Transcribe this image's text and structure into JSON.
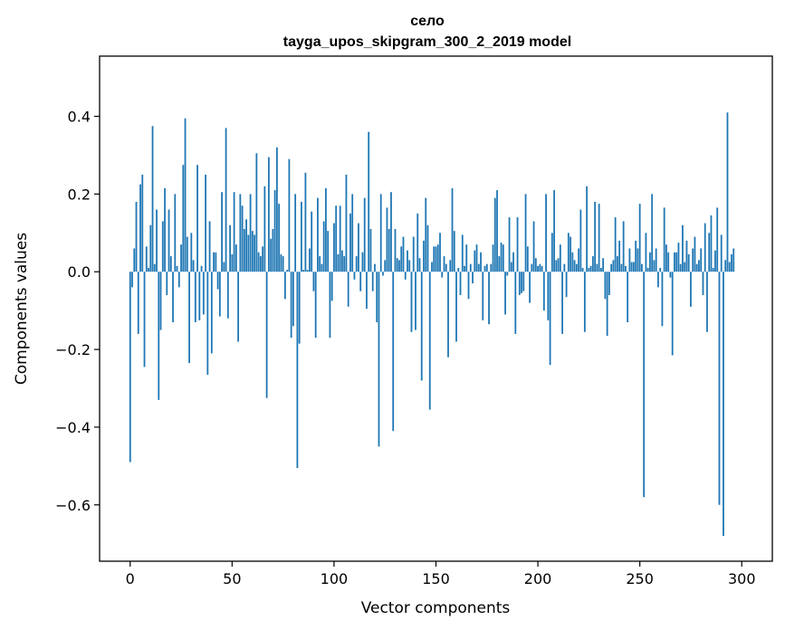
{
  "chart_data": {
    "type": "bar",
    "title": "село",
    "subtitle": "tayga_upos_skipgram_300_2_2019 model",
    "xlabel": "Vector components",
    "ylabel": "Components values",
    "xlim": [
      -15,
      315
    ],
    "ylim": [
      -0.745,
      0.555
    ],
    "xticks": [
      0,
      50,
      100,
      150,
      200,
      250,
      300
    ],
    "xtick_labels": [
      "0",
      "50",
      "100",
      "150",
      "200",
      "250",
      "300"
    ],
    "yticks": [
      -0.6,
      -0.4,
      -0.2,
      0.0,
      0.2,
      0.4
    ],
    "ytick_labels": [
      "−0.6",
      "−0.4",
      "−0.2",
      "0.0",
      "0.2",
      "0.4"
    ],
    "bar_color": "#1f77b4",
    "grid": false,
    "values": [
      -0.49,
      -0.04,
      0.06,
      0.18,
      -0.16,
      0.225,
      0.25,
      -0.245,
      0.065,
      0.01,
      0.12,
      0.375,
      0.02,
      0.16,
      -0.33,
      -0.15,
      0.13,
      0.215,
      -0.06,
      0.16,
      0.04,
      -0.13,
      0.2,
      0.015,
      -0.04,
      0.07,
      0.275,
      0.395,
      0.09,
      -0.235,
      0.1,
      0.03,
      -0.13,
      0.275,
      -0.125,
      0.015,
      -0.11,
      0.25,
      -0.265,
      0.13,
      -0.21,
      0.05,
      0.05,
      -0.045,
      -0.115,
      0.205,
      0.025,
      0.37,
      -0.12,
      0.12,
      0.045,
      0.205,
      0.07,
      -0.18,
      0.2,
      0.17,
      0.11,
      0.135,
      0.095,
      0.2,
      0.105,
      0.095,
      0.305,
      0.05,
      0.04,
      0.065,
      0.22,
      -0.325,
      0.295,
      0.085,
      0.11,
      0.21,
      0.32,
      0.175,
      0.045,
      0.04,
      -0.07,
      0.005,
      0.29,
      -0.17,
      -0.14,
      0.2,
      -0.505,
      -0.185,
      0.18,
      0.005,
      0.255,
      0.005,
      0.06,
      0.155,
      -0.05,
      -0.17,
      0.19,
      0.04,
      0.02,
      0.13,
      0.215,
      0.105,
      -0.17,
      -0.075,
      0.125,
      0.17,
      0.045,
      0.17,
      0.055,
      0.04,
      0.25,
      -0.09,
      0.15,
      0.2,
      -0.02,
      0.04,
      0.125,
      -0.05,
      0.05,
      0.19,
      -0.095,
      0.36,
      0.11,
      -0.05,
      0.02,
      -0.13,
      -0.45,
      0.2,
      -0.01,
      0.03,
      0.165,
      0.11,
      0.205,
      -0.41,
      0.11,
      0.035,
      0.03,
      0.065,
      0.09,
      -0.02,
      0.055,
      0.03,
      -0.155,
      0.09,
      -0.15,
      0.15,
      0.035,
      -0.28,
      0.08,
      0.19,
      0.12,
      -0.355,
      0.025,
      0.065,
      0.065,
      0.07,
      0.1,
      -0.015,
      0.04,
      0.02,
      -0.22,
      0.03,
      0.215,
      0.105,
      -0.18,
      0.01,
      -0.06,
      0.095,
      0.015,
      0.07,
      -0.07,
      0.02,
      -0.03,
      0.055,
      0.07,
      0.02,
      0.05,
      -0.125,
      0.015,
      0.02,
      -0.135,
      0.02,
      0.07,
      0.19,
      0.21,
      0.04,
      0.075,
      0.07,
      -0.11,
      -0.01,
      0.14,
      0.025,
      0.05,
      -0.16,
      0.14,
      -0.06,
      -0.055,
      -0.05,
      0.2,
      0.065,
      -0.08,
      0.02,
      0.13,
      0.035,
      0.015,
      0.02,
      0.015,
      -0.1,
      0.2,
      -0.125,
      -0.24,
      0.1,
      0.21,
      0.03,
      0.035,
      0.07,
      -0.16,
      0.02,
      -0.065,
      0.1,
      0.09,
      0.05,
      0.03,
      0.02,
      0.06,
      0.16,
      0.01,
      -0.155,
      0.22,
      0.01,
      0.015,
      0.04,
      0.18,
      0.02,
      0.175,
      0.01,
      0.035,
      -0.07,
      -0.165,
      -0.06,
      0.02,
      0.03,
      0.14,
      0.04,
      0.08,
      0.02,
      0.13,
      0.015,
      -0.13,
      0.06,
      0.025,
      0.025,
      0.08,
      0.06,
      0.175,
      0.02,
      -0.58,
      0.1,
      0.01,
      0.05,
      0.2,
      0.03,
      0.06,
      -0.04,
      0.01,
      -0.14,
      0.165,
      0.07,
      0.05,
      -0.015,
      -0.215,
      0.05,
      0.05,
      0.075,
      0.02,
      0.12,
      0.025,
      0.08,
      0.045,
      -0.09,
      0.06,
      0.09,
      0.02,
      0.03,
      0.06,
      -0.06,
      0.125,
      -0.155,
      0.1,
      0.145,
      0.01,
      0.055,
      0.165,
      -0.6,
      0.095,
      -0.68,
      0.03,
      0.41,
      0.025,
      0.045,
      0.06
    ]
  }
}
